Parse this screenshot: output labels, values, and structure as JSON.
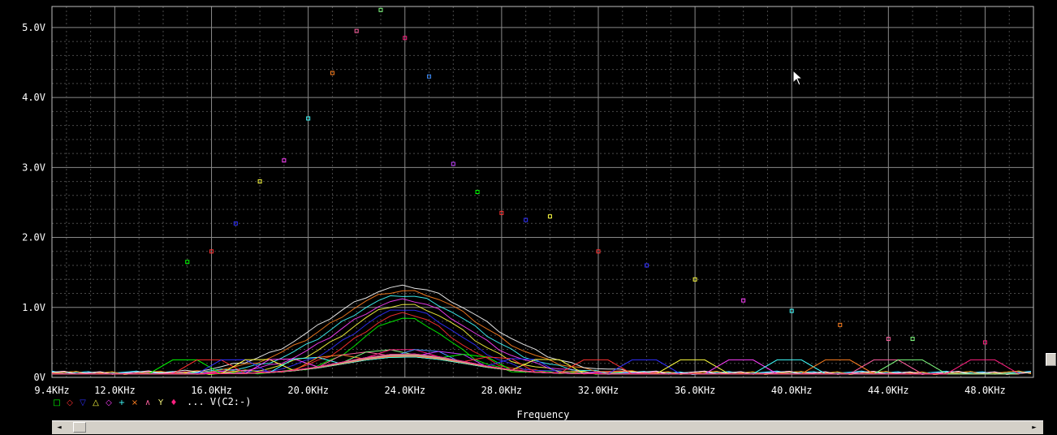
{
  "chart_data": {
    "type": "line",
    "xlabel": "Frequency",
    "ylabel": "",
    "title": "",
    "xlim": [
      9.4,
      50
    ],
    "ylim": [
      0,
      5.3
    ],
    "grid": true,
    "xticks": [
      {
        "v": 9.4,
        "label": "9.4KHz"
      },
      {
        "v": 12,
        "label": "12.0KHz"
      },
      {
        "v": 16,
        "label": "16.0KHz"
      },
      {
        "v": 20,
        "label": "20.0KHz"
      },
      {
        "v": 24,
        "label": "24.0KHz"
      },
      {
        "v": 28,
        "label": "28.0KHz"
      },
      {
        "v": 32,
        "label": "32.0KHz"
      },
      {
        "v": 36,
        "label": "36.0KHz"
      },
      {
        "v": 40,
        "label": "40.0KHz"
      },
      {
        "v": 44,
        "label": "44.0KHz"
      },
      {
        "v": 48,
        "label": "48.0KHz"
      }
    ],
    "yticks": [
      {
        "v": 0,
        "label": "0V"
      },
      {
        "v": 1,
        "label": "1.0V"
      },
      {
        "v": 2,
        "label": "2.0V"
      },
      {
        "v": 3,
        "label": "3.0V"
      },
      {
        "v": 4,
        "label": "4.0V"
      },
      {
        "v": 5,
        "label": "5.0V"
      }
    ],
    "legend": {
      "position": "bottom-left",
      "markers": [
        {
          "symbol": "□",
          "color": "#00ff00"
        },
        {
          "symbol": "◇",
          "color": "#ff3030"
        },
        {
          "symbol": "▽",
          "color": "#3030ff"
        },
        {
          "symbol": "△",
          "color": "#ffff40"
        },
        {
          "symbol": "◇",
          "color": "#ff40ff"
        },
        {
          "symbol": "+",
          "color": "#40ffff"
        },
        {
          "symbol": "×",
          "color": "#ff8020"
        },
        {
          "symbol": "∧",
          "color": "#ff60a0"
        },
        {
          "symbol": "Y",
          "color": "#ffff80"
        },
        {
          "symbol": "♦",
          "color": "#ff2080"
        }
      ],
      "text": "... V(C2:-)"
    },
    "series": [
      {
        "color": "#00ff00",
        "peak_x": 15,
        "peak_y": 1.65
      },
      {
        "color": "#ff3030",
        "peak_x": 16,
        "peak_y": 1.8
      },
      {
        "color": "#3030ff",
        "peak_x": 17,
        "peak_y": 2.2
      },
      {
        "color": "#ffff40",
        "peak_x": 18,
        "peak_y": 2.8
      },
      {
        "color": "#ff40ff",
        "peak_x": 19,
        "peak_y": 3.1
      },
      {
        "color": "#40ffff",
        "peak_x": 20,
        "peak_y": 3.7
      },
      {
        "color": "#ff8020",
        "peak_x": 21,
        "peak_y": 4.35
      },
      {
        "color": "#ff60a0",
        "peak_x": 22,
        "peak_y": 4.95
      },
      {
        "color": "#80ff80",
        "peak_x": 23,
        "peak_y": 5.25
      },
      {
        "color": "#ff2080",
        "peak_x": 24,
        "peak_y": 4.85
      },
      {
        "color": "#4090ff",
        "peak_x": 25,
        "peak_y": 4.3
      },
      {
        "color": "#c040ff",
        "peak_x": 26,
        "peak_y": 3.05
      },
      {
        "color": "#00ff00",
        "peak_x": 27,
        "peak_y": 2.65
      },
      {
        "color": "#ff3030",
        "peak_x": 28,
        "peak_y": 2.35
      },
      {
        "color": "#3030ff",
        "peak_x": 29,
        "peak_y": 2.25
      },
      {
        "color": "#ffff40",
        "peak_x": 30,
        "peak_y": 2.3
      },
      {
        "color": "#ff3030",
        "peak_x": 32,
        "peak_y": 1.8
      },
      {
        "color": "#3030ff",
        "peak_x": 34,
        "peak_y": 1.6
      },
      {
        "color": "#ffff40",
        "peak_x": 36,
        "peak_y": 1.4
      },
      {
        "color": "#ff40ff",
        "peak_x": 38,
        "peak_y": 1.1
      },
      {
        "color": "#40ffff",
        "peak_x": 40,
        "peak_y": 0.95
      },
      {
        "color": "#ff8020",
        "peak_x": 42,
        "peak_y": 0.75
      },
      {
        "color": "#ff60a0",
        "peak_x": 44,
        "peak_y": 0.55
      },
      {
        "color": "#80ff80",
        "peak_x": 45,
        "peak_y": 0.55
      },
      {
        "color": "#ff2080",
        "peak_x": 48,
        "peak_y": 0.5
      }
    ]
  },
  "scroll_arrows": {
    "left": "◄",
    "right": "►"
  }
}
